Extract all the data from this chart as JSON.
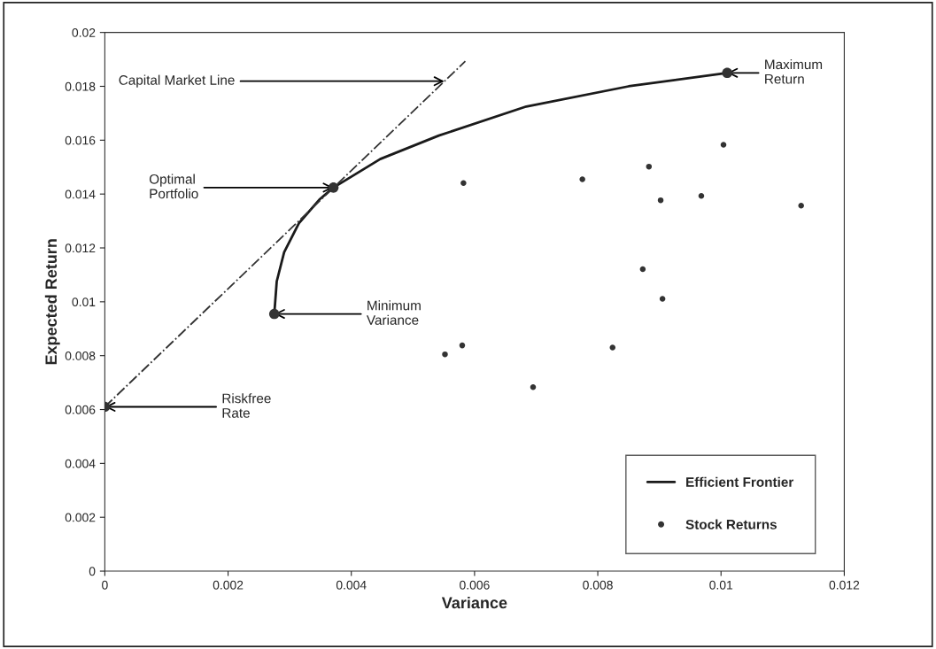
{
  "chart_data": {
    "type": "scatter",
    "xlabel": "Variance",
    "ylabel": "Expected Return",
    "xlim": [
      0,
      0.012
    ],
    "xticks": [
      0,
      0.002,
      0.004,
      0.006,
      0.008,
      0.01,
      0.012
    ],
    "ylim": [
      0,
      0.02
    ],
    "yticks": [
      0,
      0.002,
      0.004,
      0.006,
      0.008,
      0.01,
      0.012,
      0.014,
      0.016,
      0.018,
      0.02
    ],
    "grid": false,
    "legend": "bottom right",
    "series": [
      {
        "name": "Efficient Frontier",
        "type": "line",
        "color": "#1a1a1a",
        "line_style": "solid",
        "marker": "none",
        "x": [
          0.00275,
          0.00279,
          0.00291,
          0.00315,
          0.00348,
          0.00371,
          0.00447,
          0.00542,
          0.00684,
          0.0085,
          0.0101
        ],
        "values": [
          0.00955,
          0.01076,
          0.01184,
          0.01292,
          0.01379,
          0.01424,
          0.0153,
          0.01617,
          0.01725,
          0.018,
          0.0185
        ]
      },
      {
        "name": "Stock Returns",
        "color": "#333333",
        "marker": "circle",
        "x": [
          0.00582,
          0.00775,
          0.00883,
          0.01004,
          0.00902,
          0.00968,
          0.0113,
          0.00873,
          0.00905,
          0.0058,
          0.00552,
          0.00824,
          0.00695
        ],
        "values": [
          0.01441,
          0.01455,
          0.01502,
          0.01583,
          0.01377,
          0.01393,
          0.01357,
          0.01121,
          0.01011,
          0.00838,
          0.00805,
          0.0083,
          0.00683
        ]
      },
      {
        "type": "line",
        "color": "#333333",
        "line_style": "dotted",
        "marker": "none",
        "x": [
          0,
          0.00585
        ],
        "values": [
          0.0061,
          0.01893
        ]
      },
      {
        "color": "#333333",
        "marker": "circle",
        "x": [
          0,
          0.00275,
          0.00371,
          0.0101
        ],
        "values": [
          0.0061,
          0.00955,
          0.01424,
          0.0185
        ]
      }
    ],
    "annotations": [
      {
        "text": "Capital Market Line",
        "x": 0.00551,
        "y": 0.01819
      },
      {
        "text": "Optimal\nPortfolio",
        "x": 0.00371,
        "y": 0.01424
      },
      {
        "text": "Minimum\nVariance",
        "x": 0.00275,
        "y": 0.00955
      },
      {
        "text": "Riskfree\nRate",
        "x": 0,
        "y": 0.0061
      },
      {
        "text": "Maximum\nReturn",
        "x": 0.0101,
        "y": 0.0185
      }
    ]
  }
}
